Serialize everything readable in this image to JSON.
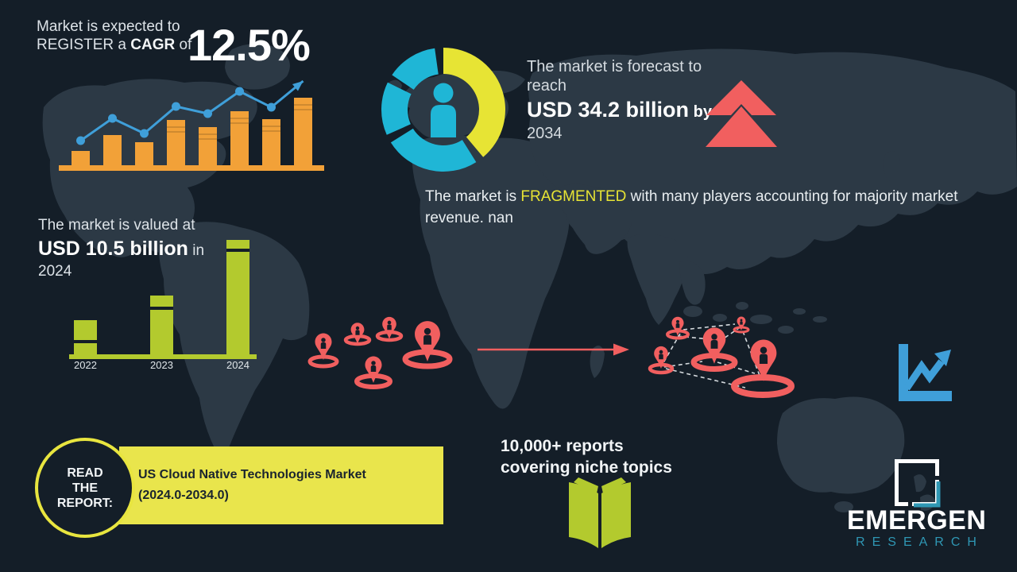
{
  "colors": {
    "background": "#141e28",
    "map": "#2c3945",
    "orange": "#f2a138",
    "blue": "#3f9fd9",
    "teal": "#1fb6d6",
    "yellow": "#e7e434",
    "green": "#b3ca2e",
    "coral": "#f15f5f",
    "banner_yellow": "#e9e54c",
    "logo_teal": "#2f97b4",
    "text_light": "#dce2e7",
    "text_dark": "#1a242e"
  },
  "cagr": {
    "line1": "Market is expected to",
    "line2_pre": "REGISTER a ",
    "line2_bold": "CAGR",
    "line2_post": " of",
    "value": "12.5%"
  },
  "forecast": {
    "line1": "The market is forecast to",
    "line2": "reach",
    "value": "USD 34.2 billion",
    "by": "by",
    "year": "2034"
  },
  "fragmented": {
    "pre": "The market is ",
    "highlight": "FRAGMENTED",
    "post": " with many players accounting for majority market revenue. nan"
  },
  "valuation": {
    "line1": "The market is valued at",
    "value": "USD 10.5 billion",
    "in": "in",
    "year": "2024"
  },
  "report": {
    "badge_line1": "READ",
    "badge_line2": "THE",
    "badge_line3": "REPORT:",
    "title": "US Cloud Native Technologies Market (2024.0-2034.0)"
  },
  "reports_counter": {
    "line1": "10,000+ reports",
    "line2": "covering niche topics"
  },
  "logo": {
    "name": "EMERGEN",
    "subtitle": "RESEARCH"
  },
  "icons": {
    "donut_center": "person-icon",
    "forecast": "double-up-arrow-icon",
    "market_players": "location-pin-icon",
    "transition": "right-flow-arrow-icon",
    "analytics": "trend-chart-icon",
    "reports": "open-book-icon",
    "logo_mark": "square-frame-icon"
  },
  "chart_data": [
    {
      "id": "cagr_growth_trend",
      "type": "bar+line",
      "title": "Decorative growth chart next to 12.5% CAGR (no axis labels shown)",
      "categories": [
        "1",
        "2",
        "3",
        "4",
        "5",
        "6",
        "7",
        "8"
      ],
      "bar_values": [
        18,
        38,
        29,
        57,
        48,
        68,
        58,
        85
      ],
      "line_values": [
        31,
        59,
        40,
        74,
        65,
        93,
        73,
        106
      ],
      "bar_color": "#f2a138",
      "line_color": "#3f9fd9",
      "note": "values are relative heights read from pixels; line ends in an up-right arrow"
    },
    {
      "id": "market_share_donut",
      "type": "pie",
      "title": "Decorative donut with person pictogram",
      "segments": [
        {
          "label": "yellow-segment",
          "start_deg": 0,
          "end_deg": 140,
          "color": "#e7e434"
        },
        {
          "label": "teal-segment-1",
          "start_deg": 148,
          "end_deg": 238,
          "color": "#1fb6d6"
        },
        {
          "label": "teal-segment-2",
          "start_deg": 246,
          "end_deg": 296,
          "color": "#1fb6d6"
        },
        {
          "label": "teal-segment-3",
          "start_deg": 304,
          "end_deg": 352,
          "color": "#1fb6d6"
        }
      ],
      "center_icon": "person-icon",
      "center_icon_color": "#1fb6d6"
    },
    {
      "id": "market_value_by_year",
      "type": "bar",
      "categories": [
        "2022",
        "2023",
        "2024"
      ],
      "values_relative": [
        43,
        74,
        144
      ],
      "stripe_offsets": [
        25,
        14,
        11
      ],
      "value_2024_usd_billion": 10.5,
      "bar_color": "#b3ca2e",
      "xlabel": "",
      "ylabel": "",
      "note": "only 2024 value labeled in text: USD 10.5 billion"
    }
  ]
}
